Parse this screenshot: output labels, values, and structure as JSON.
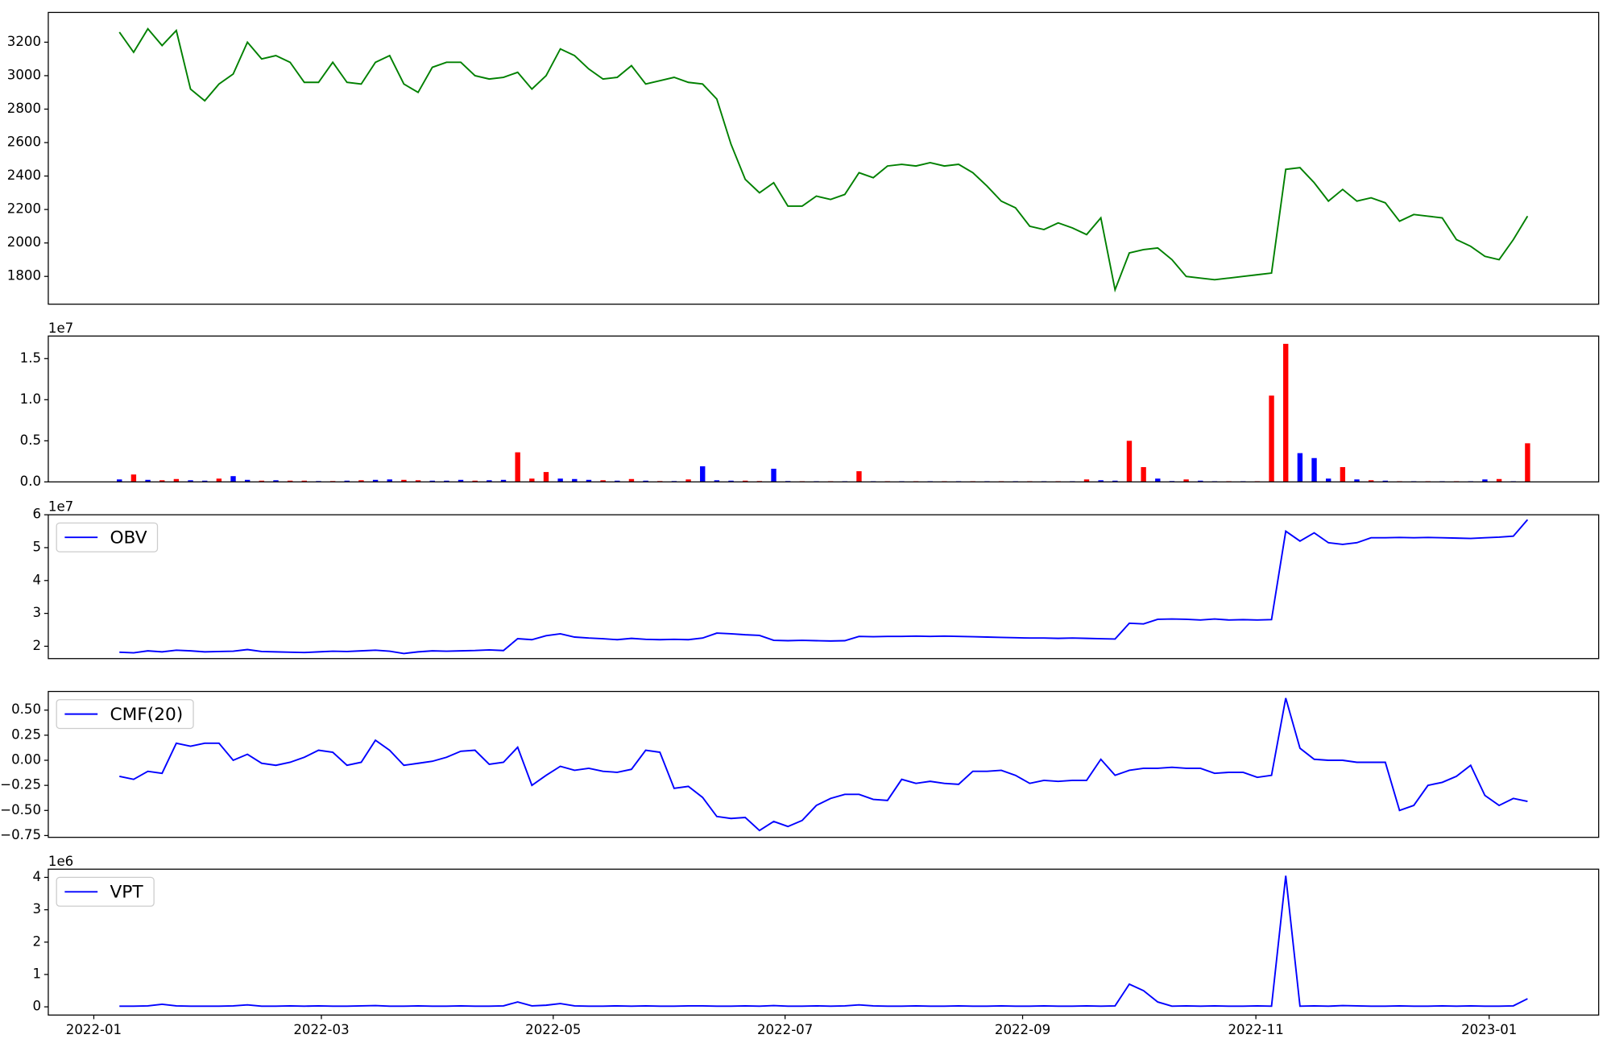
{
  "chart_data": [
    {
      "type": "line",
      "series": [
        {
          "color": "green",
          "values": [
            3260,
            3140,
            3280,
            3180,
            3270,
            2920,
            2850,
            2950,
            3010,
            3200,
            3100,
            3120,
            3080,
            2960,
            2960,
            3080,
            2960,
            2950,
            3080,
            3120,
            2950,
            2900,
            3050,
            3080,
            3080,
            3000,
            2980,
            2990,
            3020,
            2920,
            3000,
            3160,
            3120,
            3040,
            2980,
            2990,
            3060,
            2950,
            2970,
            2990,
            2960,
            2950,
            2860,
            2590,
            2380,
            2300,
            2360,
            2220,
            2220,
            2280,
            2260,
            2290,
            2420,
            2390,
            2460,
            2470,
            2460,
            2480,
            2460,
            2470,
            2420,
            2340,
            2250,
            2210,
            2100,
            2080,
            2120,
            2090,
            2050,
            2150,
            1720,
            1940,
            1960,
            1970,
            1900,
            1800,
            1790,
            1780,
            1790,
            1800,
            1810,
            1820,
            2440,
            2450,
            2360,
            2250,
            2320,
            2250,
            2270,
            2240,
            2130,
            2170,
            2160,
            2150,
            2020,
            1980,
            1920,
            1900,
            2020,
            2160
          ]
        }
      ],
      "xlim": [
        -5.0,
        104.0
      ],
      "ylim": [
        1634,
        3378
      ],
      "yticks": [
        1800,
        2000,
        2200,
        2400,
        2600,
        2800,
        3000,
        3200
      ]
    },
    {
      "type": "bar",
      "values": [
        300000,
        900000,
        250000,
        200000,
        350000,
        200000,
        150000,
        400000,
        700000,
        250000,
        150000,
        200000,
        150000,
        150000,
        100000,
        100000,
        150000,
        200000,
        250000,
        300000,
        250000,
        200000,
        150000,
        150000,
        250000,
        150000,
        200000,
        250000,
        3600000,
        400000,
        1200000,
        400000,
        350000,
        250000,
        200000,
        150000,
        350000,
        150000,
        100000,
        100000,
        300000,
        1900000,
        200000,
        150000,
        150000,
        100000,
        1600000,
        100000,
        80000,
        80000,
        80000,
        80000,
        1300000,
        80000,
        80000,
        80000,
        80000,
        80000,
        80000,
        80000,
        80000,
        80000,
        80000,
        80000,
        80000,
        80000,
        80000,
        80000,
        300000,
        200000,
        150000,
        5000000,
        1800000,
        400000,
        100000,
        300000,
        150000,
        80000,
        80000,
        80000,
        80000,
        10500000,
        16800000,
        3500000,
        2900000,
        400000,
        1800000,
        300000,
        200000,
        150000,
        80000,
        80000,
        80000,
        80000,
        80000,
        80000,
        300000,
        350000,
        80000,
        4700000
      ],
      "colors": [
        "blue",
        "red",
        "blue",
        "red",
        "red",
        "blue",
        "blue",
        "red",
        "blue",
        "blue",
        "red",
        "blue",
        "red",
        "red",
        "blue",
        "red",
        "blue",
        "red",
        "blue",
        "blue",
        "red",
        "red",
        "blue",
        "blue",
        "blue",
        "red",
        "blue",
        "blue",
        "red",
        "red",
        "red",
        "blue",
        "blue",
        "blue",
        "red",
        "blue",
        "red",
        "blue",
        "red",
        "blue",
        "red",
        "blue",
        "blue",
        "blue",
        "red",
        "red",
        "blue",
        "blue",
        "red",
        "blue",
        "red",
        "blue",
        "red",
        "blue",
        "red",
        "blue",
        "red",
        "blue",
        "red",
        "blue",
        "red",
        "blue",
        "red",
        "blue",
        "red",
        "blue",
        "red",
        "blue",
        "red",
        "blue",
        "blue",
        "red",
        "red",
        "blue",
        "blue",
        "red",
        "blue",
        "blue",
        "red",
        "blue",
        "red",
        "red",
        "red",
        "blue",
        "blue",
        "blue",
        "red",
        "blue",
        "red",
        "blue",
        "red",
        "blue",
        "red",
        "blue",
        "red",
        "blue",
        "blue",
        "red",
        "blue",
        "red"
      ],
      "offset_text": "1e7",
      "xlim": [
        -5.0,
        104.0
      ],
      "ylim": [
        0,
        17750000
      ],
      "yticks": [
        {
          "value": 0,
          "label": "0.0"
        },
        {
          "value": 5000000,
          "label": "0.5"
        },
        {
          "value": 10000000,
          "label": "1.0"
        },
        {
          "value": 15000000,
          "label": "1.5"
        }
      ]
    },
    {
      "type": "line",
      "series": [
        {
          "name": "OBV",
          "color": "blue",
          "values": [
            18200000,
            18000000,
            18600000,
            18300000,
            18800000,
            18600000,
            18300000,
            18400000,
            18500000,
            19000000,
            18400000,
            18300000,
            18200000,
            18100000,
            18300000,
            18500000,
            18400000,
            18600000,
            18800000,
            18500000,
            17800000,
            18300000,
            18600000,
            18500000,
            18600000,
            18700000,
            18900000,
            18700000,
            22300000,
            22000000,
            23200000,
            23800000,
            22800000,
            22500000,
            22300000,
            22000000,
            22400000,
            22100000,
            22000000,
            22100000,
            22000000,
            22500000,
            24000000,
            23800000,
            23500000,
            23300000,
            21800000,
            21700000,
            21800000,
            21700000,
            21600000,
            21700000,
            23000000,
            22900000,
            23000000,
            23000000,
            23100000,
            23000000,
            23100000,
            23000000,
            22900000,
            22800000,
            22700000,
            22600000,
            22500000,
            22500000,
            22400000,
            22500000,
            22400000,
            22300000,
            22200000,
            27000000,
            26800000,
            28200000,
            28300000,
            28200000,
            28000000,
            28300000,
            28000000,
            28100000,
            28000000,
            28100000,
            55000000,
            52000000,
            54500000,
            51500000,
            51000000,
            51500000,
            53000000,
            53000000,
            53100000,
            53000000,
            53100000,
            53000000,
            52900000,
            52800000,
            53000000,
            53200000,
            53500000,
            58500000
          ]
        }
      ],
      "offset_text": "1e7",
      "legend": "upper left",
      "xlim": [
        -5.0,
        104.0
      ],
      "ylim": [
        16250000,
        60000000
      ],
      "yticks": [
        {
          "value": 20000000,
          "label": "2"
        },
        {
          "value": 30000000,
          "label": "3"
        },
        {
          "value": 40000000,
          "label": "4"
        },
        {
          "value": 50000000,
          "label": "5"
        },
        {
          "value": 60000000,
          "label": "6"
        }
      ]
    },
    {
      "type": "line",
      "series": [
        {
          "name": "CMF(20)",
          "color": "blue",
          "values": [
            -0.16,
            -0.19,
            -0.11,
            -0.13,
            0.17,
            0.14,
            0.17,
            0.17,
            0.0,
            0.06,
            -0.03,
            -0.05,
            -0.02,
            0.03,
            0.1,
            0.08,
            -0.05,
            -0.02,
            0.2,
            0.1,
            -0.05,
            -0.03,
            -0.01,
            0.03,
            0.09,
            0.1,
            -0.04,
            -0.02,
            0.13,
            -0.25,
            -0.15,
            -0.06,
            -0.1,
            -0.08,
            -0.11,
            -0.12,
            -0.09,
            0.1,
            0.08,
            -0.28,
            -0.26,
            -0.37,
            -0.56,
            -0.58,
            -0.57,
            -0.7,
            -0.61,
            -0.66,
            -0.6,
            -0.45,
            -0.38,
            -0.34,
            -0.34,
            -0.39,
            -0.4,
            -0.19,
            -0.23,
            -0.21,
            -0.23,
            -0.24,
            -0.11,
            -0.11,
            -0.1,
            -0.15,
            -0.23,
            -0.2,
            -0.21,
            -0.2,
            -0.2,
            0.01,
            -0.15,
            -0.1,
            -0.08,
            -0.08,
            -0.07,
            -0.08,
            -0.08,
            -0.13,
            -0.12,
            -0.12,
            -0.17,
            -0.15,
            0.62,
            0.12,
            0.01,
            0.0,
            0.0,
            -0.02,
            -0.02,
            -0.02,
            -0.5,
            -0.45,
            -0.25,
            -0.22,
            -0.16,
            -0.05,
            -0.35,
            -0.45,
            -0.38,
            -0.41
          ]
        }
      ],
      "legend": "upper left",
      "xlim": [
        -5.0,
        104.0
      ],
      "ylim": [
        -0.768,
        0.686
      ],
      "yticks": [
        {
          "value": -0.75,
          "label": "−0.75"
        },
        {
          "value": -0.5,
          "label": "−0.50"
        },
        {
          "value": -0.25,
          "label": "−0.25"
        },
        {
          "value": 0,
          "label": "0.00"
        },
        {
          "value": 0.25,
          "label": "0.25"
        },
        {
          "value": 0.5,
          "label": "0.50"
        }
      ]
    },
    {
      "type": "line",
      "series": [
        {
          "name": "VPT",
          "color": "blue",
          "values": [
            20000,
            20000,
            30000,
            80000,
            30000,
            20000,
            20000,
            20000,
            30000,
            60000,
            20000,
            20000,
            30000,
            20000,
            30000,
            20000,
            20000,
            30000,
            40000,
            20000,
            20000,
            30000,
            20000,
            20000,
            30000,
            20000,
            20000,
            30000,
            150000,
            30000,
            50000,
            100000,
            30000,
            20000,
            20000,
            30000,
            20000,
            30000,
            20000,
            20000,
            30000,
            30000,
            20000,
            20000,
            30000,
            20000,
            40000,
            20000,
            20000,
            30000,
            20000,
            30000,
            60000,
            30000,
            20000,
            20000,
            30000,
            20000,
            20000,
            30000,
            20000,
            20000,
            30000,
            20000,
            20000,
            30000,
            20000,
            20000,
            30000,
            20000,
            30000,
            700000,
            500000,
            150000,
            20000,
            30000,
            20000,
            30000,
            20000,
            20000,
            30000,
            20000,
            4050000,
            20000,
            30000,
            20000,
            40000,
            30000,
            20000,
            20000,
            30000,
            20000,
            20000,
            30000,
            20000,
            30000,
            20000,
            20000,
            30000,
            250000
          ]
        }
      ],
      "offset_text": "1e6",
      "legend": "upper left",
      "xlim": [
        -5.0,
        104.0
      ],
      "ylim": [
        -254000,
        4254000
      ],
      "yticks": [
        {
          "value": 0,
          "label": "0"
        },
        {
          "value": 1000000,
          "label": "1"
        },
        {
          "value": 2000000,
          "label": "2"
        },
        {
          "value": 3000000,
          "label": "3"
        },
        {
          "value": 4000000,
          "label": "4"
        }
      ],
      "xticks": [
        {
          "value": -1.8,
          "label": "2022-01"
        },
        {
          "value": 14.2,
          "label": "2022-03"
        },
        {
          "value": 30.5,
          "label": "2022-05"
        },
        {
          "value": 46.8,
          "label": "2022-07"
        },
        {
          "value": 63.5,
          "label": "2022-09"
        },
        {
          "value": 79.9,
          "label": "2022-11"
        },
        {
          "value": 96.3,
          "label": "2023-01"
        }
      ]
    }
  ]
}
